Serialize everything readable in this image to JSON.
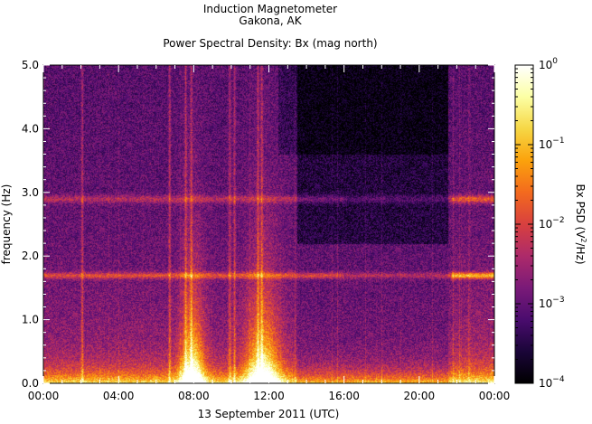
{
  "chart_data": {
    "type": "heatmap",
    "title": "Induction Magnetometer",
    "subtitle": "Gakona, AK",
    "plot_title": "Power Spectral Density: Bx (mag north)",
    "xlabel": "13 September 2011 (UTC)",
    "ylabel": "frequency (Hz)",
    "x_ticks": [
      "00:00",
      "04:00",
      "08:00",
      "12:00",
      "16:00",
      "20:00",
      "00:00"
    ],
    "y_ticks": [
      "0.0",
      "1.0",
      "2.0",
      "3.0",
      "4.0",
      "5.0"
    ],
    "xlim_hours": [
      0,
      24
    ],
    "ylim": [
      0,
      5.0
    ],
    "colorbar": {
      "label": "Bx PSD (V²/Hz)",
      "label_base": "Bx PSD (V",
      "label_sup": "2",
      "label_end": "/Hz)",
      "scale": "log",
      "range": [
        0.0001,
        1
      ],
      "ticks": [
        {
          "base": "10",
          "exp": "0"
        },
        {
          "base": "10",
          "exp": "−1"
        },
        {
          "base": "10",
          "exp": "−2"
        },
        {
          "base": "10",
          "exp": "−3"
        },
        {
          "base": "10",
          "exp": "−4"
        }
      ],
      "colors": [
        "#000000",
        "#1a0538",
        "#4a0c6e",
        "#7a1a78",
        "#ad2a6a",
        "#d8403f",
        "#f36a1e",
        "#fba20c",
        "#f6d745",
        "#fcffa4",
        "#ffffff"
      ]
    },
    "features": {
      "noise_bands_hz": [
        1.7,
        2.9
      ],
      "bright_intervals_hours": [
        [
          7.5,
          8.3
        ],
        [
          11.0,
          12.3
        ]
      ],
      "enhanced_activity_hours": [
        [
          21.7,
          24
        ]
      ]
    }
  }
}
